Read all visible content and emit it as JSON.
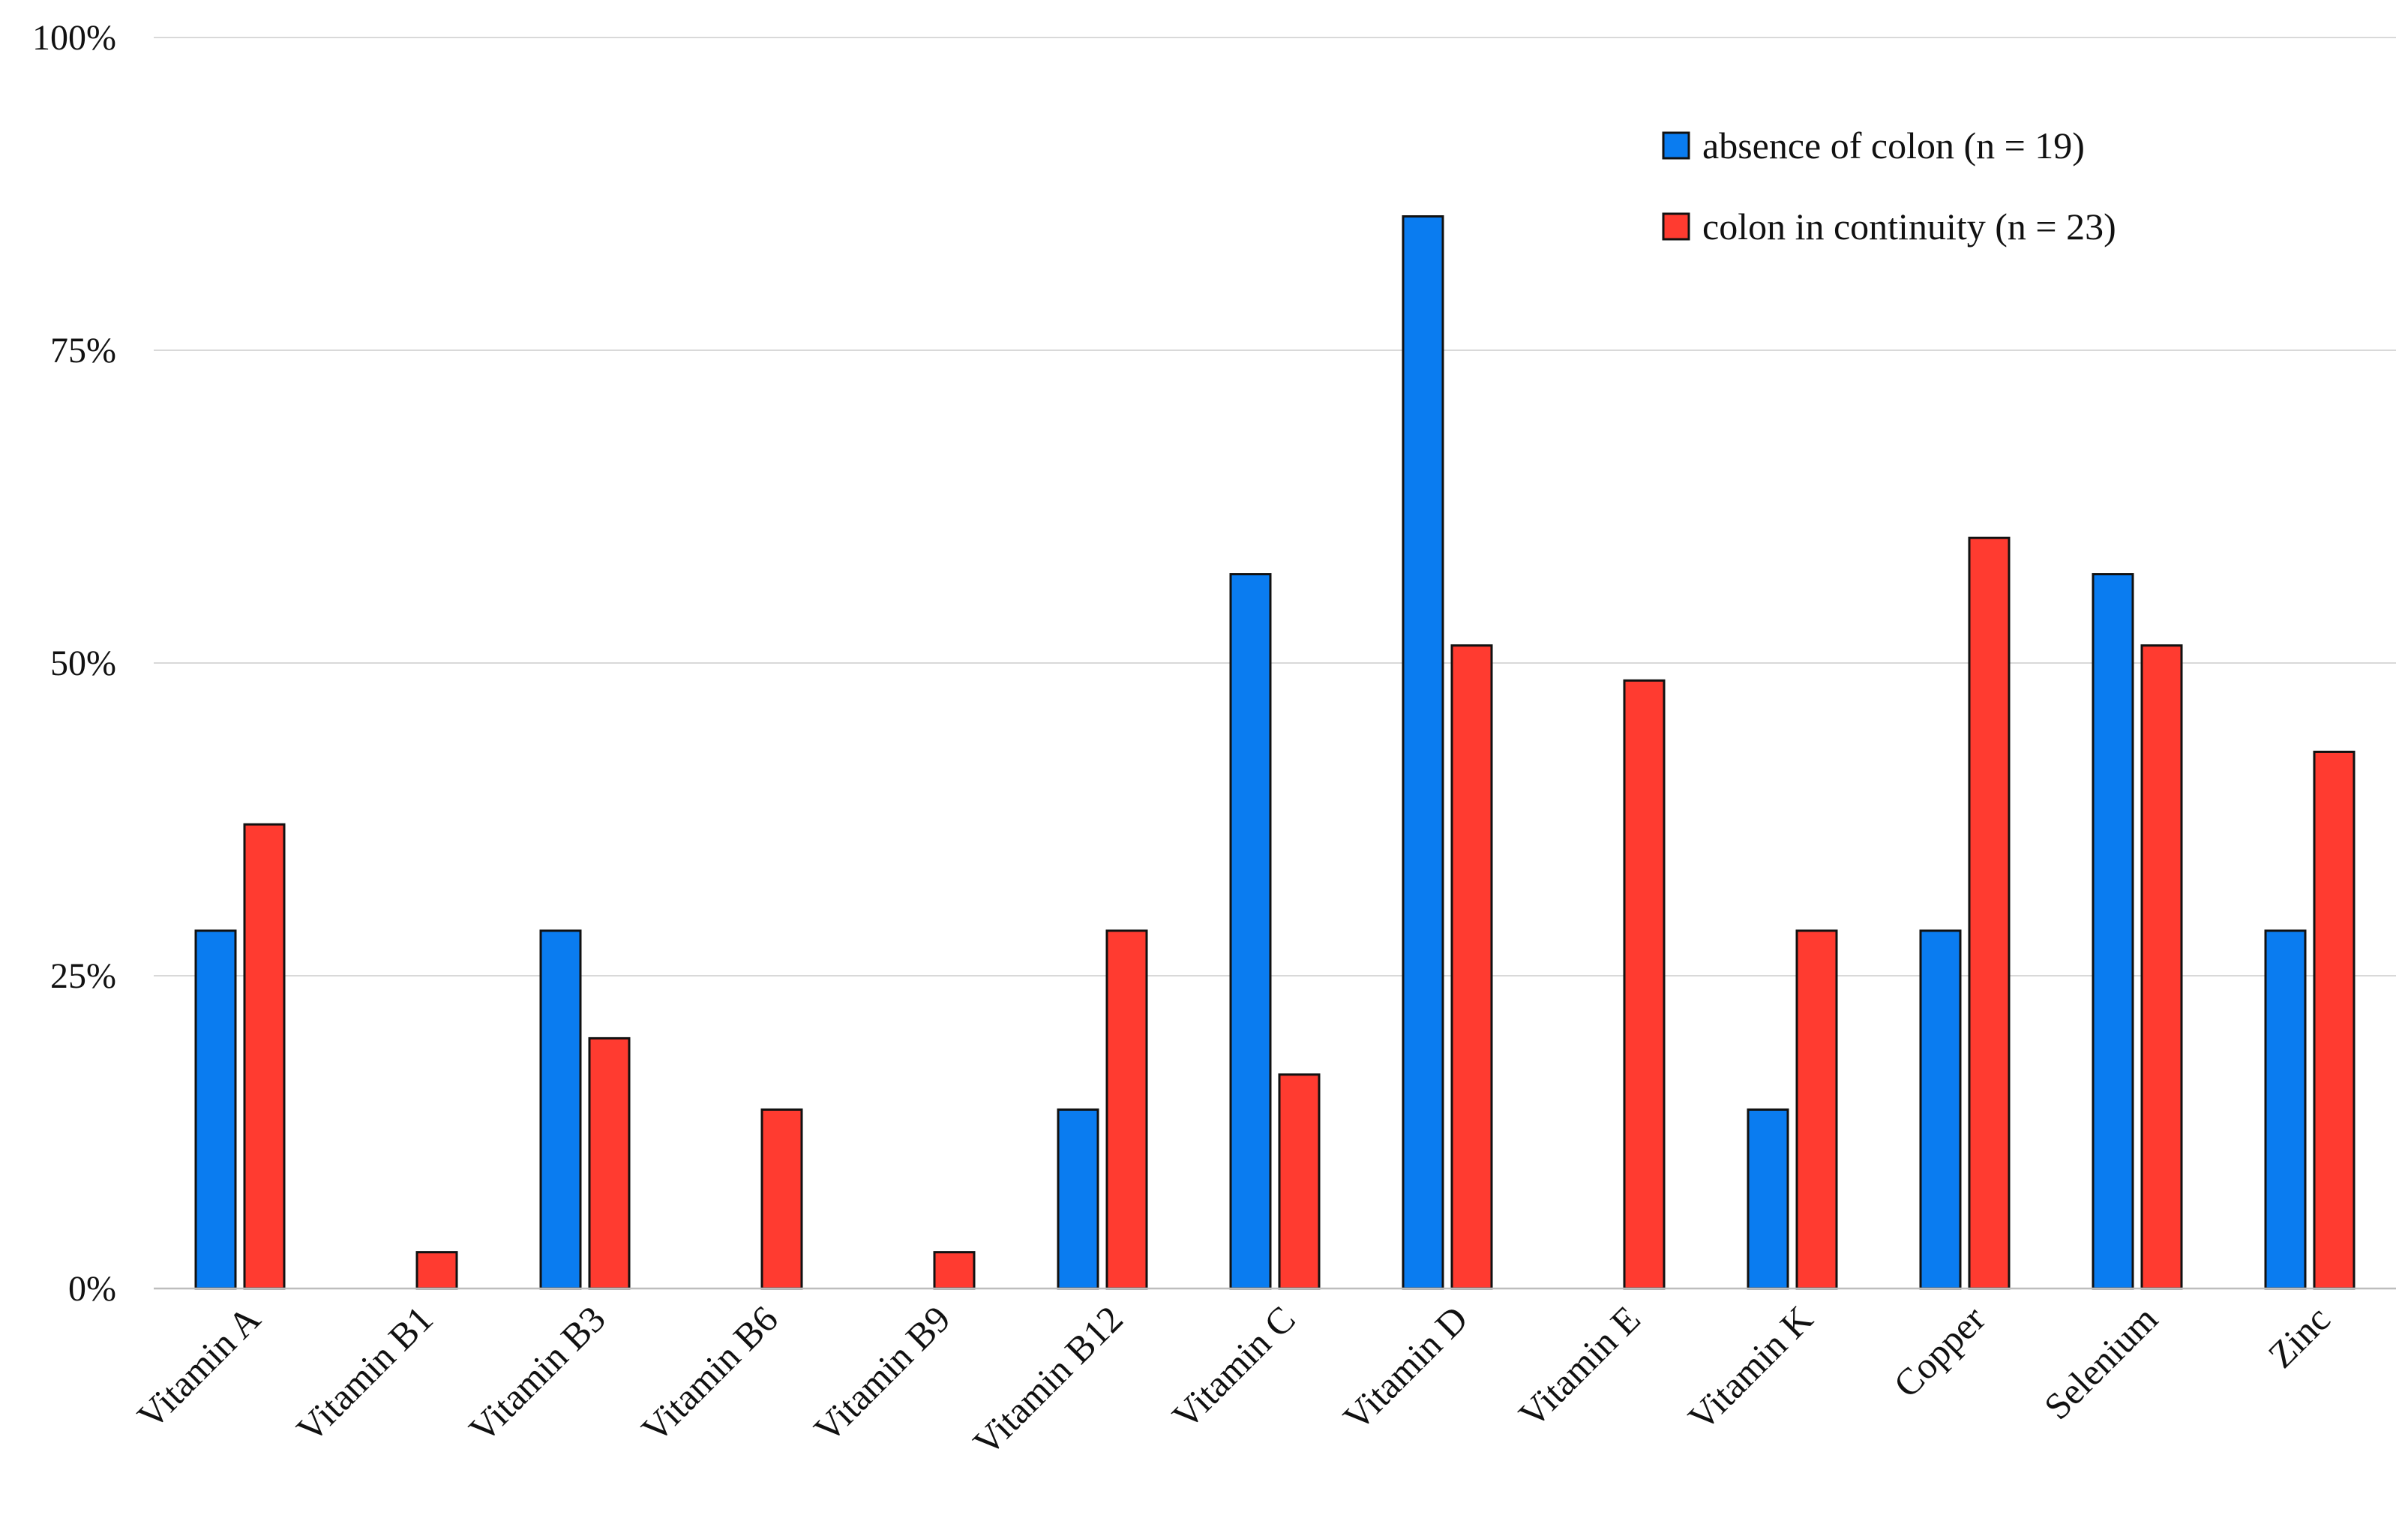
{
  "chart_data": {
    "type": "bar",
    "title": "",
    "xlabel": "",
    "ylabel": "",
    "ylim": [
      0,
      100
    ],
    "yticks": [
      0,
      25,
      50,
      75,
      100
    ],
    "ytick_labels": [
      "0%",
      "25%",
      "50%",
      "75%",
      "100%"
    ],
    "grid": true,
    "legend_position": "top-right",
    "categories": [
      "Vitamin A",
      "Vitamin B1",
      "Vitamin B3",
      "Vitamin B6",
      "Vitamin B9",
      "Vitamin B12",
      "Vitamin C",
      "Vitamin D",
      "Vitamin E",
      "Vitamin K",
      "Copper",
      "Selenium",
      "Zinc"
    ],
    "series": [
      {
        "name": "absence of colon (n = 19)",
        "color": "#0a7cf0",
        "values": [
          28.6,
          0,
          28.6,
          0,
          0,
          14.3,
          57.1,
          85.7,
          0,
          14.3,
          28.6,
          57.1,
          28.6
        ]
      },
      {
        "name": "colon in continuity (n = 23)",
        "color": "#ff3b30",
        "values": [
          37.1,
          2.9,
          20.0,
          14.3,
          2.9,
          28.6,
          17.1,
          51.4,
          48.6,
          28.6,
          60.0,
          51.4,
          42.9
        ]
      }
    ]
  }
}
